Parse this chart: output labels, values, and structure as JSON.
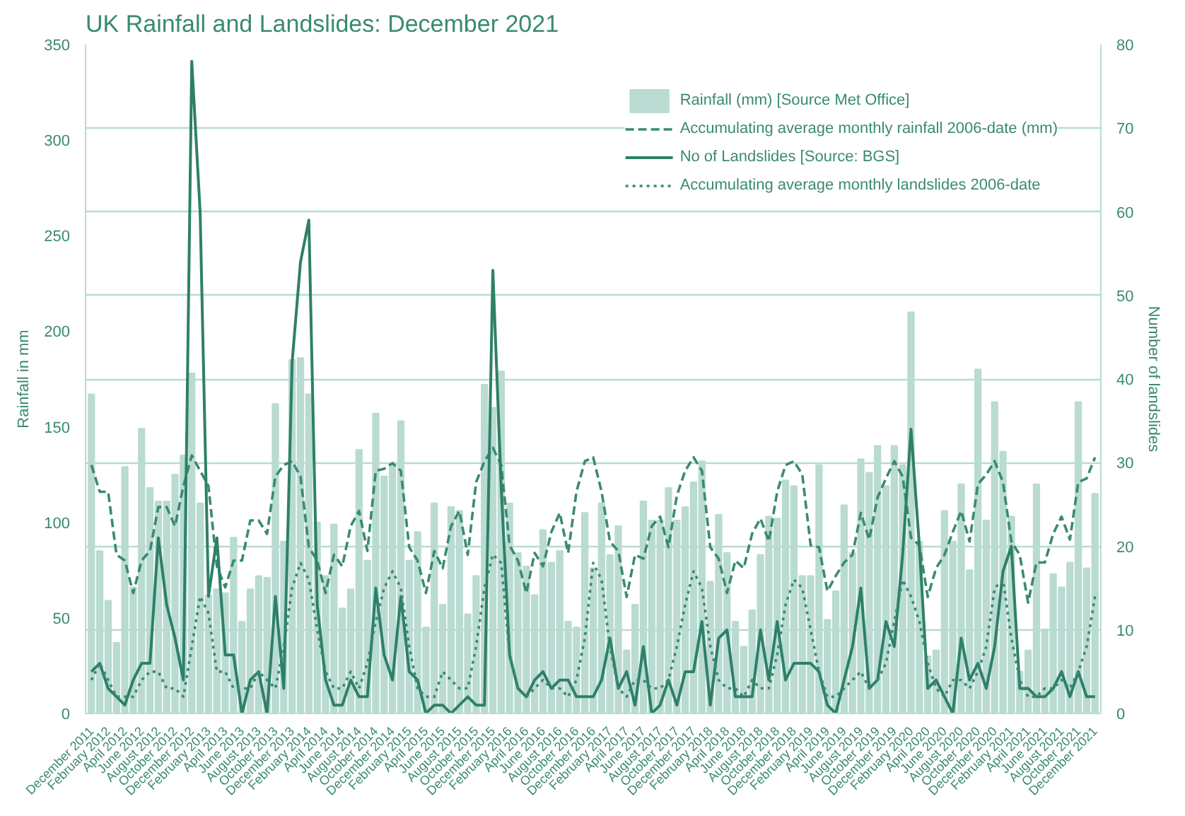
{
  "chart_data": {
    "type": "bar",
    "title": "UK Rainfall and Landslides: December 2021",
    "ylabel": "Rainfall in mm",
    "y2label": "Number of landslides",
    "categories": [
      "December 2011",
      null,
      "February 2012",
      null,
      "April 2012",
      null,
      "June 2012",
      null,
      "August 2012",
      null,
      "October 2012",
      null,
      "December 2012",
      null,
      "February 2013",
      null,
      "April 2013",
      null,
      "June 2013",
      null,
      "August 2013",
      null,
      "October 2013",
      null,
      "December 2013",
      null,
      "February 2014",
      null,
      "April 2014",
      null,
      "June 2014",
      null,
      "August 2014",
      null,
      "October 2014",
      null,
      "December 2014",
      null,
      "February 2015",
      null,
      "April 2015",
      null,
      "June 2015",
      null,
      "August 2015",
      null,
      "October 2015",
      null,
      "December 2015",
      null,
      "February 2016",
      null,
      "April 2016",
      null,
      "June 2016",
      null,
      "August 2016",
      null,
      "October 2016",
      null,
      "December 2016",
      null,
      "February 2017",
      null,
      "April 2017",
      null,
      "June 2017",
      null,
      "August 2017",
      null,
      "October 2017",
      null,
      "December 2017",
      null,
      "February 2018",
      null,
      "April 2018",
      null,
      "June 2018",
      null,
      "August 2018",
      null,
      "October 2018",
      null,
      "December 2018",
      null,
      "February 2019",
      null,
      "April 2019",
      null,
      "June 2019",
      null,
      "August 2019",
      null,
      "October 2019",
      null,
      "December 2019",
      null,
      "February 2020",
      null,
      "April 2020",
      null,
      "June 2020",
      null,
      "August 2020",
      null,
      "October 2020",
      null,
      "December 2020",
      null,
      "February 2021",
      null,
      "April 2021",
      null,
      "June 2021",
      null,
      "August 2021",
      null,
      "October 2021",
      null,
      "December 2021"
    ],
    "ylim": [
      0,
      350
    ],
    "yticks": [
      0,
      50,
      100,
      150,
      200,
      250,
      300,
      350
    ],
    "y2lim": [
      0,
      80
    ],
    "y2ticks": [
      0,
      10,
      20,
      30,
      40,
      50,
      60,
      70,
      80
    ],
    "grid": "y2",
    "legend": "top right",
    "series": [
      {
        "name": "Rainfall (mm) [Source Met Office]",
        "color": "#b9dbd1",
        "values": [
          167,
          85,
          59,
          37,
          129,
          66,
          149,
          118,
          111,
          111,
          125,
          135,
          178,
          110,
          62,
          65,
          63,
          92,
          48,
          65,
          72,
          71,
          162,
          90,
          185,
          186,
          167,
          100,
          72,
          99,
          55,
          65,
          138,
          80,
          157,
          124,
          130,
          153,
          80,
          95,
          45,
          110,
          57,
          108,
          106,
          52,
          72,
          172,
          160,
          179,
          110,
          84,
          77,
          62,
          96,
          79,
          85,
          48,
          45,
          105,
          76,
          110,
          83,
          98,
          33,
          57,
          111,
          101,
          101,
          118,
          101,
          108,
          121,
          132,
          69,
          104,
          84,
          48,
          35,
          54,
          83,
          103,
          102,
          122,
          119,
          72,
          72,
          130,
          49,
          64,
          109,
          84,
          133,
          126,
          140,
          119,
          140,
          130,
          210,
          90,
          30,
          33,
          106,
          90,
          120,
          75,
          180,
          101,
          163,
          137,
          103,
          22,
          33,
          120,
          44,
          73,
          66,
          79,
          163,
          76,
          115
        ]
      },
      {
        "name": "Accumulating average monthly rainfall 2006-date (mm)",
        "type": "line",
        "line_style": "dashed",
        "color": "#3a8a72",
        "values": [
          130,
          116,
          116,
          83,
          80,
          63,
          80,
          85,
          108,
          108,
          98,
          119,
          135,
          127,
          119,
          77,
          66,
          80,
          80,
          101,
          101,
          94,
          124,
          130,
          132,
          124,
          87,
          80,
          63,
          83,
          77,
          98,
          106,
          85,
          127,
          128,
          131,
          127,
          87,
          80,
          63,
          85,
          76,
          98,
          106,
          83,
          121,
          132,
          139,
          130,
          88,
          80,
          63,
          84,
          77,
          95,
          105,
          84,
          116,
          132,
          134,
          116,
          90,
          85,
          61,
          83,
          81,
          98,
          103,
          87,
          114,
          127,
          134,
          127,
          87,
          81,
          63,
          80,
          76,
          94,
          102,
          90,
          116,
          130,
          132,
          125,
          88,
          87,
          64,
          72,
          79,
          83,
          105,
          91,
          113,
          123,
          132,
          124,
          92,
          88,
          61,
          76,
          83,
          95,
          106,
          90,
          120,
          125,
          132,
          121,
          90,
          83,
          58,
          79,
          79,
          94,
          103,
          91,
          121,
          123,
          134
        ]
      },
      {
        "name": "No of Landslides [Source: BGS]",
        "type": "line",
        "axis": "y2",
        "line_style": "solid",
        "color": "#2e8068",
        "values": [
          5,
          6,
          3,
          2,
          1,
          4,
          6,
          6,
          21,
          13,
          9,
          4,
          78,
          60,
          14,
          21,
          7,
          7,
          0,
          4,
          5,
          0,
          14,
          3,
          42,
          54,
          59,
          13,
          4,
          1,
          1,
          4,
          2,
          2,
          15,
          7,
          4,
          14,
          5,
          4,
          0,
          1,
          1,
          0,
          1,
          2,
          1,
          1,
          53,
          27,
          7,
          3,
          2,
          4,
          5,
          3,
          4,
          4,
          2,
          2,
          2,
          4,
          9,
          3,
          5,
          1,
          8,
          0,
          1,
          4,
          1,
          5,
          5,
          11,
          1,
          9,
          10,
          2,
          2,
          2,
          10,
          4,
          11,
          4,
          6,
          6,
          6,
          5,
          1,
          0,
          4,
          8,
          15,
          3,
          4,
          11,
          8,
          19,
          34,
          20,
          3,
          4,
          2,
          0,
          9,
          4,
          6,
          3,
          8,
          17,
          20,
          3,
          3,
          2,
          2,
          3,
          5,
          2,
          5,
          2,
          2
        ]
      },
      {
        "name": "Accumulating average monthly landslides 2006-date",
        "type": "line",
        "axis": "y2",
        "line_style": "dotted",
        "color": "#3a8a72",
        "values": [
          4,
          6,
          4,
          2,
          2,
          2,
          4,
          5,
          5,
          3,
          3,
          2,
          8,
          14,
          12,
          5,
          5,
          3,
          3,
          3,
          5,
          4,
          3,
          8,
          15,
          18,
          16,
          10,
          5,
          3,
          3,
          5,
          3,
          6,
          11,
          15,
          17,
          15,
          8,
          3,
          2,
          2,
          5,
          4,
          3,
          3,
          8,
          15,
          19,
          18,
          7,
          3,
          2,
          3,
          4,
          3,
          3,
          2,
          4,
          9,
          18,
          16,
          8,
          3,
          2,
          4,
          4,
          3,
          3,
          4,
          8,
          13,
          17,
          15,
          8,
          4,
          3,
          3,
          2,
          4,
          3,
          3,
          7,
          13,
          16,
          15,
          10,
          5,
          2,
          2,
          3,
          4,
          5,
          3,
          4,
          6,
          11,
          16,
          14,
          11,
          6,
          3,
          2,
          4,
          4,
          3,
          5,
          8,
          15,
          16,
          9,
          4,
          2,
          2,
          3,
          3,
          4,
          3,
          5,
          8,
          14
        ]
      }
    ]
  }
}
